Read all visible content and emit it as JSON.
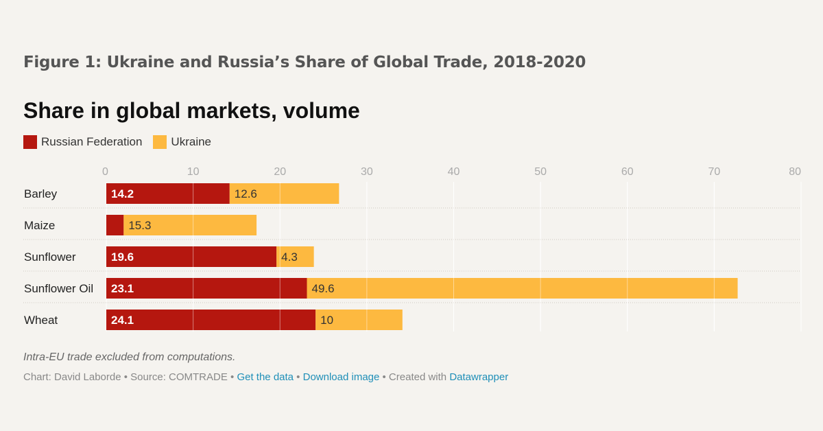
{
  "figure_title": "Figure 1: Ukraine and Russia’s Share of Global Trade, 2018-2020",
  "colors": {
    "russia": "#b5170f",
    "ukraine": "#fdb940",
    "grid": "#ffffff",
    "axis_text": "#aaaaaa"
  },
  "chart_data": {
    "type": "bar",
    "orientation": "horizontal",
    "stacked": true,
    "title": "Share in global markets, volume",
    "categories": [
      "Barley",
      "Maize",
      "Sunflower",
      "Sunflower Oil",
      "Wheat"
    ],
    "series": [
      {
        "name": "Russian Federation",
        "values": [
          14.2,
          2.0,
          19.6,
          23.1,
          24.1
        ],
        "labels": [
          "14.2",
          "",
          "19.6",
          "23.1",
          "24.1"
        ]
      },
      {
        "name": "Ukraine",
        "values": [
          12.6,
          15.3,
          4.3,
          49.6,
          10
        ],
        "labels": [
          "12.6",
          "15.3",
          "4.3",
          "49.6",
          "10"
        ]
      }
    ],
    "xlim": [
      0,
      80
    ],
    "xticks": [
      "0",
      "10",
      "20",
      "30",
      "40",
      "50",
      "60",
      "70",
      "80"
    ],
    "legend_position": "top-left",
    "grid": true
  },
  "note": "Intra-EU trade excluded from computations.",
  "footer": {
    "credit": "Chart: David Laborde • Source: COMTRADE • ",
    "get_data": "Get the data",
    "sep1": " • ",
    "download": "Download image",
    "sep2": " • Created with ",
    "datawrapper": "Datawrapper"
  }
}
